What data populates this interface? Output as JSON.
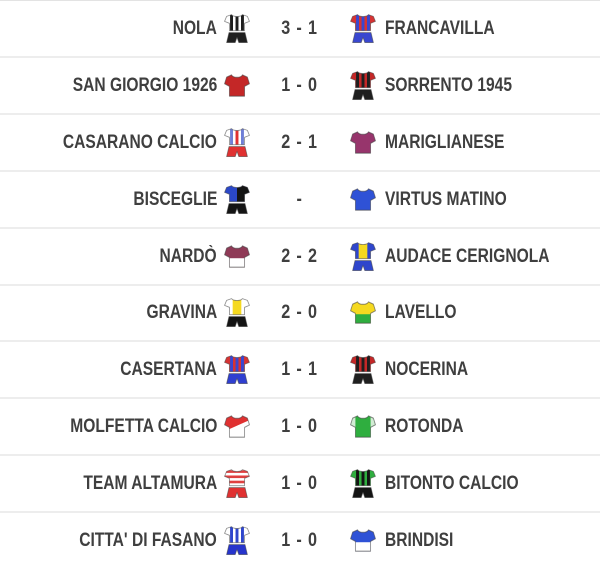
{
  "theme": {
    "text": "#3f3f3f",
    "separator": "#ededed",
    "bg": "#ffffff"
  },
  "matches": [
    {
      "home": {
        "name": "NOLA",
        "kit": {
          "pattern": "stripes",
          "c1": "#ffffff",
          "c2": "#1f1f1f",
          "shorts": "#1f1f1f"
        }
      },
      "score": "3 - 1",
      "away": {
        "name": "FRANCAVILLA",
        "kit": {
          "pattern": "stripes",
          "c1": "#d63333",
          "c2": "#3947d0",
          "shorts": "#3947d0"
        }
      }
    },
    {
      "home": {
        "name": "SAN GIORGIO 1926",
        "kit": {
          "pattern": "solid",
          "c1": "#c42727"
        }
      },
      "score": "1 - 0",
      "away": {
        "name": "SORRENTO 1945",
        "kit": {
          "pattern": "stripes",
          "c1": "#c42727",
          "c2": "#1f1f1f",
          "shorts": "#1f1f1f"
        }
      }
    },
    {
      "home": {
        "name": "CASARANO CALCIO",
        "kit": {
          "pattern": "stripes",
          "c1": "#ffffff",
          "c2": "#6f7fd6",
          "c3": "#e03131",
          "shorts": "#e03131"
        }
      },
      "score": "2 - 1",
      "away": {
        "name": "MARIGLIANESE",
        "kit": {
          "pattern": "solid",
          "c1": "#97356c"
        }
      }
    },
    {
      "home": {
        "name": "BISCEGLIE",
        "kit": {
          "pattern": "halves",
          "c1": "#2b48c8",
          "c2": "#141414",
          "shorts": "#141414"
        }
      },
      "score": "-",
      "away": {
        "name": "VIRTUS MATINO",
        "kit": {
          "pattern": "solid",
          "c1": "#2f52d6"
        }
      }
    },
    {
      "home": {
        "name": "NARDÒ",
        "kit": {
          "pattern": "topbottom",
          "c1": "#8f3a57",
          "c2": "#ffffff"
        }
      },
      "score": "2 - 2",
      "away": {
        "name": "AUDACE CERIGNOLA",
        "kit": {
          "pattern": "center",
          "c1": "#2f46cc",
          "c2": "#f5d920",
          "shorts": "#2f46cc"
        }
      }
    },
    {
      "home": {
        "name": "GRAVINA",
        "kit": {
          "pattern": "center",
          "c1": "#ffffff",
          "c2": "#f5d920",
          "shorts": "#141414"
        }
      },
      "score": "2 - 0",
      "away": {
        "name": "LAVELLO",
        "kit": {
          "pattern": "topbottom",
          "c1": "#f5d920",
          "c2": "#2fae3f"
        }
      }
    },
    {
      "home": {
        "name": "CASERTANA",
        "kit": {
          "pattern": "stripes",
          "c1": "#d63333",
          "c2": "#3947d0",
          "shorts": "#2f3fd0"
        }
      },
      "score": "1 - 1",
      "away": {
        "name": "NOCERINA",
        "kit": {
          "pattern": "stripes",
          "c1": "#c42727",
          "c2": "#1f1f1f",
          "shorts": "#1f1f1f"
        }
      }
    },
    {
      "home": {
        "name": "MOLFETTA CALCIO",
        "kit": {
          "pattern": "sash",
          "c1": "#ffffff",
          "c2": "#e03131"
        }
      },
      "score": "1 - 0",
      "away": {
        "name": "ROTONDA",
        "kit": {
          "pattern": "sleeves",
          "c1": "#2fae3f",
          "c2": "#d2ecd4"
        }
      }
    },
    {
      "home": {
        "name": "TEAM ALTAMURA",
        "kit": {
          "pattern": "hoops",
          "c1": "#ffffff",
          "c2": "#e04040",
          "shorts": "#e03131"
        }
      },
      "score": "1 - 0",
      "away": {
        "name": "BITONTO CALCIO",
        "kit": {
          "pattern": "stripes",
          "c1": "#2fae3f",
          "c2": "#141414",
          "shorts": "#141414"
        }
      }
    },
    {
      "home": {
        "name": "CITTA' DI FASANO",
        "kit": {
          "pattern": "stripes",
          "c1": "#ffffff",
          "c2": "#2f46cc",
          "shorts": "#2634cc"
        }
      },
      "score": "1 - 0",
      "away": {
        "name": "BRINDISI",
        "kit": {
          "pattern": "topbottom",
          "c1": "#2f52d6",
          "c2": "#ffffff"
        }
      }
    }
  ]
}
